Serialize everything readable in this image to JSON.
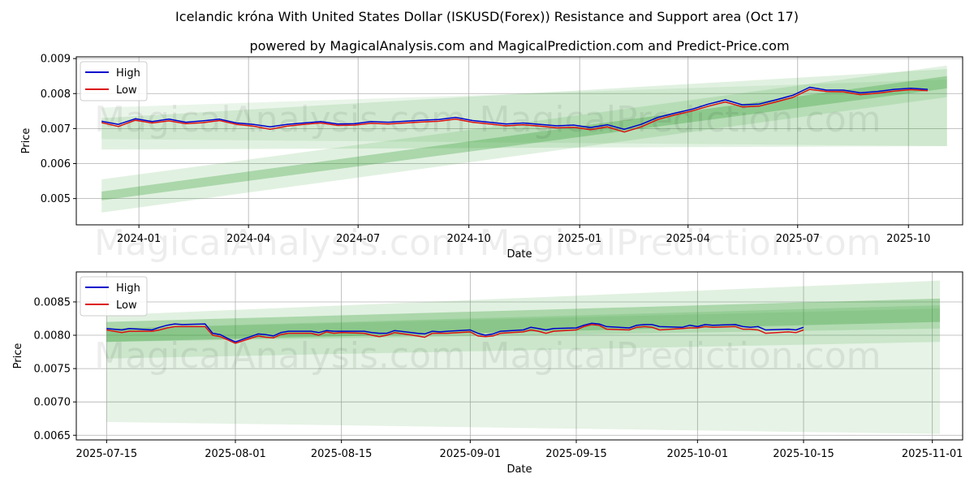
{
  "title": "Icelandic króna With United States Dollar (ISKUSD(Forex)) Resistance and Support area (Oct 17)",
  "subtitle": "powered by MagicalAnalysis.com and MagicalPrediction.com and Predict-Price.com",
  "watermarks": [
    "MagicalAnalysis.com",
    "MagicalPrediction.com"
  ],
  "colors": {
    "high": "#0000cc",
    "low": "#dd1111",
    "band": "#2e9a2e",
    "grid": "#b0b0b0"
  },
  "chart_data": [
    {
      "type": "line",
      "xlabel": "Date",
      "ylabel": "Price",
      "legend": "top-left",
      "grid": true,
      "xlim": [
        "2023-11-10",
        "2025-11-15"
      ],
      "ylim": [
        0.00425,
        0.00905
      ],
      "x_ticks": [
        "2024-01",
        "2024-04",
        "2024-07",
        "2024-10",
        "2025-01",
        "2025-04",
        "2025-07",
        "2025-10"
      ],
      "x_tick_dates": [
        "2024-01-01",
        "2024-04-01",
        "2024-07-01",
        "2024-10-01",
        "2025-01-01",
        "2025-04-01",
        "2025-07-01",
        "2025-10-01"
      ],
      "y_ticks": [
        "0.005",
        "0.006",
        "0.007",
        "0.008",
        "0.009"
      ],
      "y_tick_values": [
        0.005,
        0.006,
        0.007,
        0.008,
        0.009
      ],
      "series": [
        {
          "name": "High",
          "x": [
            "2023-12-01",
            "2023-12-15",
            "2023-12-29",
            "2024-01-12",
            "2024-01-26",
            "2024-02-09",
            "2024-02-23",
            "2024-03-08",
            "2024-03-22",
            "2024-04-05",
            "2024-04-19",
            "2024-05-03",
            "2024-05-17",
            "2024-05-31",
            "2024-06-14",
            "2024-06-28",
            "2024-07-12",
            "2024-07-26",
            "2024-08-09",
            "2024-08-23",
            "2024-09-06",
            "2024-09-20",
            "2024-10-04",
            "2024-10-18",
            "2024-11-01",
            "2024-11-15",
            "2024-11-29",
            "2024-12-13",
            "2024-12-27",
            "2025-01-10",
            "2025-01-24",
            "2025-02-07",
            "2025-02-21",
            "2025-03-07",
            "2025-03-21",
            "2025-04-04",
            "2025-04-18",
            "2025-05-02",
            "2025-05-16",
            "2025-05-30",
            "2025-06-13",
            "2025-06-27",
            "2025-07-11",
            "2025-07-25",
            "2025-08-08",
            "2025-08-22",
            "2025-09-05",
            "2025-09-19",
            "2025-10-03",
            "2025-10-17"
          ],
          "values": [
            0.00721,
            0.00712,
            0.00728,
            0.0072,
            0.00727,
            0.00718,
            0.00722,
            0.00727,
            0.00716,
            0.00712,
            0.00705,
            0.00712,
            0.00716,
            0.0072,
            0.00713,
            0.00714,
            0.0072,
            0.00718,
            0.00721,
            0.00724,
            0.00726,
            0.00732,
            0.00723,
            0.00718,
            0.00713,
            0.00716,
            0.00712,
            0.00708,
            0.0071,
            0.00703,
            0.00711,
            0.00698,
            0.00712,
            0.00732,
            0.00744,
            0.00755,
            0.0077,
            0.00782,
            0.00768,
            0.0077,
            0.00782,
            0.00795,
            0.00818,
            0.0081,
            0.0081,
            0.00802,
            0.00806,
            0.00812,
            0.00815,
            0.00812
          ]
        },
        {
          "name": "Low",
          "x": [
            "2023-12-01",
            "2023-12-15",
            "2023-12-29",
            "2024-01-12",
            "2024-01-26",
            "2024-02-09",
            "2024-02-23",
            "2024-03-08",
            "2024-03-22",
            "2024-04-05",
            "2024-04-19",
            "2024-05-03",
            "2024-05-17",
            "2024-05-31",
            "2024-06-14",
            "2024-06-28",
            "2024-07-12",
            "2024-07-26",
            "2024-08-09",
            "2024-08-23",
            "2024-09-06",
            "2024-09-20",
            "2024-10-04",
            "2024-10-18",
            "2024-11-01",
            "2024-11-15",
            "2024-11-29",
            "2024-12-13",
            "2024-12-27",
            "2025-01-10",
            "2025-01-24",
            "2025-02-07",
            "2025-02-21",
            "2025-03-07",
            "2025-03-21",
            "2025-04-04",
            "2025-04-18",
            "2025-05-02",
            "2025-05-16",
            "2025-05-30",
            "2025-06-13",
            "2025-06-27",
            "2025-07-11",
            "2025-07-25",
            "2025-08-08",
            "2025-08-22",
            "2025-09-05",
            "2025-09-19",
            "2025-10-03",
            "2025-10-17"
          ],
          "values": [
            0.00717,
            0.00706,
            0.00724,
            0.00716,
            0.00722,
            0.00714,
            0.00717,
            0.00723,
            0.00712,
            0.00707,
            0.00698,
            0.00707,
            0.00712,
            0.00716,
            0.00709,
            0.0071,
            0.00715,
            0.00713,
            0.00716,
            0.00719,
            0.00721,
            0.00727,
            0.00718,
            0.00713,
            0.00708,
            0.00711,
            0.00707,
            0.00702,
            0.00704,
            0.00697,
            0.00705,
            0.0069,
            0.00705,
            0.00726,
            0.00739,
            0.0075,
            0.00764,
            0.00776,
            0.00762,
            0.00764,
            0.00776,
            0.00789,
            0.00812,
            0.00806,
            0.00805,
            0.00797,
            0.00801,
            0.00807,
            0.00811,
            0.00808
          ]
        }
      ],
      "bands": [
        {
          "x": [
            "2023-12-01",
            "2025-11-02"
          ],
          "lower": [
            0.00495,
            0.00815
          ],
          "upper": [
            0.0052,
            0.0085
          ],
          "opacity": 0.3
        },
        {
          "x": [
            "2023-12-01",
            "2025-11-02"
          ],
          "lower": [
            0.0046,
            0.0079
          ],
          "upper": [
            0.00555,
            0.0088
          ],
          "opacity": 0.14
        },
        {
          "x": [
            "2023-12-01",
            "2025-11-02"
          ],
          "lower": [
            0.0064,
            0.0065
          ],
          "upper": [
            0.0073,
            0.0087
          ],
          "opacity": 0.14
        },
        {
          "x": [
            "2023-12-01",
            "2025-11-02"
          ],
          "lower": [
            0.0067,
            0.0065
          ],
          "upper": [
            0.0076,
            0.0084
          ],
          "opacity": 0.1
        }
      ]
    },
    {
      "type": "line",
      "xlabel": "Date",
      "ylabel": "Price",
      "legend": "top-left",
      "grid": true,
      "xlim": [
        "2025-07-11",
        "2025-11-05"
      ],
      "ylim": [
        0.00643,
        0.00895
      ],
      "x_ticks": [
        "2025-07-15",
        "2025-08-01",
        "2025-08-15",
        "2025-09-01",
        "2025-09-15",
        "2025-10-01",
        "2025-10-15",
        "2025-11-01"
      ],
      "x_tick_dates": [
        "2025-07-15",
        "2025-08-01",
        "2025-08-15",
        "2025-09-01",
        "2025-09-15",
        "2025-10-01",
        "2025-10-15",
        "2025-11-01"
      ],
      "y_ticks": [
        "0.0065",
        "0.0070",
        "0.0075",
        "0.0080",
        "0.0085"
      ],
      "y_tick_values": [
        0.0065,
        0.007,
        0.0075,
        0.008,
        0.0085
      ],
      "series": [
        {
          "name": "High",
          "x": [
            "2025-07-15",
            "2025-07-17",
            "2025-07-18",
            "2025-07-21",
            "2025-07-22",
            "2025-07-23",
            "2025-07-24",
            "2025-07-25",
            "2025-07-28",
            "2025-07-29",
            "2025-07-30",
            "2025-07-31",
            "2025-08-01",
            "2025-08-04",
            "2025-08-05",
            "2025-08-06",
            "2025-08-07",
            "2025-08-08",
            "2025-08-11",
            "2025-08-12",
            "2025-08-13",
            "2025-08-14",
            "2025-08-15",
            "2025-08-18",
            "2025-08-19",
            "2025-08-20",
            "2025-08-21",
            "2025-08-22",
            "2025-08-25",
            "2025-08-26",
            "2025-08-27",
            "2025-08-28",
            "2025-08-29",
            "2025-09-01",
            "2025-09-02",
            "2025-09-03",
            "2025-09-04",
            "2025-09-05",
            "2025-09-08",
            "2025-09-09",
            "2025-09-10",
            "2025-09-11",
            "2025-09-12",
            "2025-09-15",
            "2025-09-16",
            "2025-09-17",
            "2025-09-18",
            "2025-09-19",
            "2025-09-22",
            "2025-09-23",
            "2025-09-24",
            "2025-09-25",
            "2025-09-26",
            "2025-09-29",
            "2025-09-30",
            "2025-10-01",
            "2025-10-02",
            "2025-10-03",
            "2025-10-06",
            "2025-10-07",
            "2025-10-08",
            "2025-10-09",
            "2025-10-10",
            "2025-10-13",
            "2025-10-14",
            "2025-10-15"
          ],
          "values": [
            0.0081,
            0.00808,
            0.0081,
            0.00808,
            0.00812,
            0.00815,
            0.00817,
            0.00816,
            0.00817,
            0.00803,
            0.00801,
            0.00795,
            0.0079,
            0.00802,
            0.00801,
            0.00799,
            0.00804,
            0.00806,
            0.00806,
            0.00804,
            0.00807,
            0.00806,
            0.00806,
            0.00806,
            0.00804,
            0.00803,
            0.00803,
            0.00807,
            0.00803,
            0.00802,
            0.00806,
            0.00805,
            0.00806,
            0.00808,
            0.00803,
            0.008,
            0.00802,
            0.00806,
            0.00808,
            0.00812,
            0.0081,
            0.00808,
            0.0081,
            0.00811,
            0.00815,
            0.00818,
            0.00817,
            0.00813,
            0.00811,
            0.00815,
            0.00816,
            0.00816,
            0.00813,
            0.00812,
            0.00815,
            0.00813,
            0.00816,
            0.00815,
            0.00816,
            0.00813,
            0.00812,
            0.00813,
            0.00808,
            0.00809,
            0.00808,
            0.00812
          ]
        },
        {
          "name": "Low",
          "x": [
            "2025-07-15",
            "2025-07-17",
            "2025-07-18",
            "2025-07-21",
            "2025-07-22",
            "2025-07-23",
            "2025-07-24",
            "2025-07-25",
            "2025-07-28",
            "2025-07-29",
            "2025-07-30",
            "2025-07-31",
            "2025-08-01",
            "2025-08-04",
            "2025-08-05",
            "2025-08-06",
            "2025-08-07",
            "2025-08-08",
            "2025-08-11",
            "2025-08-12",
            "2025-08-13",
            "2025-08-14",
            "2025-08-15",
            "2025-08-18",
            "2025-08-19",
            "2025-08-20",
            "2025-08-21",
            "2025-08-22",
            "2025-08-25",
            "2025-08-26",
            "2025-08-27",
            "2025-08-28",
            "2025-08-29",
            "2025-09-01",
            "2025-09-02",
            "2025-09-03",
            "2025-09-04",
            "2025-09-05",
            "2025-09-08",
            "2025-09-09",
            "2025-09-10",
            "2025-09-11",
            "2025-09-12",
            "2025-09-15",
            "2025-09-16",
            "2025-09-17",
            "2025-09-18",
            "2025-09-19",
            "2025-09-22",
            "2025-09-23",
            "2025-09-24",
            "2025-09-25",
            "2025-09-26",
            "2025-09-29",
            "2025-09-30",
            "2025-10-01",
            "2025-10-02",
            "2025-10-03",
            "2025-10-06",
            "2025-10-07",
            "2025-10-08",
            "2025-10-09",
            "2025-10-10",
            "2025-10-13",
            "2025-10-14",
            "2025-10-15"
          ],
          "values": [
            0.00808,
            0.00804,
            0.00806,
            0.00806,
            0.00808,
            0.00811,
            0.00813,
            0.00813,
            0.00813,
            0.008,
            0.00798,
            0.00793,
            0.00788,
            0.00799,
            0.00797,
            0.00796,
            0.00801,
            0.00803,
            0.00803,
            0.008,
            0.00805,
            0.00803,
            0.00804,
            0.00803,
            0.008,
            0.00798,
            0.008,
            0.00804,
            0.00799,
            0.00797,
            0.00803,
            0.00803,
            0.00803,
            0.00805,
            0.00799,
            0.00798,
            0.00799,
            0.00803,
            0.00805,
            0.00808,
            0.00806,
            0.00803,
            0.00806,
            0.00808,
            0.00813,
            0.00816,
            0.00815,
            0.00809,
            0.00808,
            0.00812,
            0.00813,
            0.00812,
            0.00808,
            0.0081,
            0.00811,
            0.00811,
            0.00813,
            0.00812,
            0.00813,
            0.00809,
            0.00809,
            0.00808,
            0.00803,
            0.00805,
            0.00804,
            0.00808
          ]
        }
      ],
      "bands": [
        {
          "x": [
            "2025-07-15",
            "2025-11-02"
          ],
          "lower": [
            0.0079,
            0.0082
          ],
          "upper": [
            0.0082,
            0.00855
          ],
          "opacity": 0.3
        },
        {
          "x": [
            "2025-07-15",
            "2025-11-02"
          ],
          "lower": [
            0.00765,
            0.0079
          ],
          "upper": [
            0.0083,
            0.00882
          ],
          "opacity": 0.14
        },
        {
          "x": [
            "2025-07-15",
            "2025-11-02"
          ],
          "lower": [
            0.0067,
            0.00652
          ],
          "upper": [
            0.0081,
            0.0084
          ],
          "opacity": 0.12
        },
        {
          "x": [
            "2025-07-15",
            "2025-11-02"
          ],
          "lower": [
            0.0079,
            0.0081
          ],
          "upper": [
            0.0081,
            0.00845
          ],
          "opacity": 0.16
        }
      ]
    }
  ]
}
